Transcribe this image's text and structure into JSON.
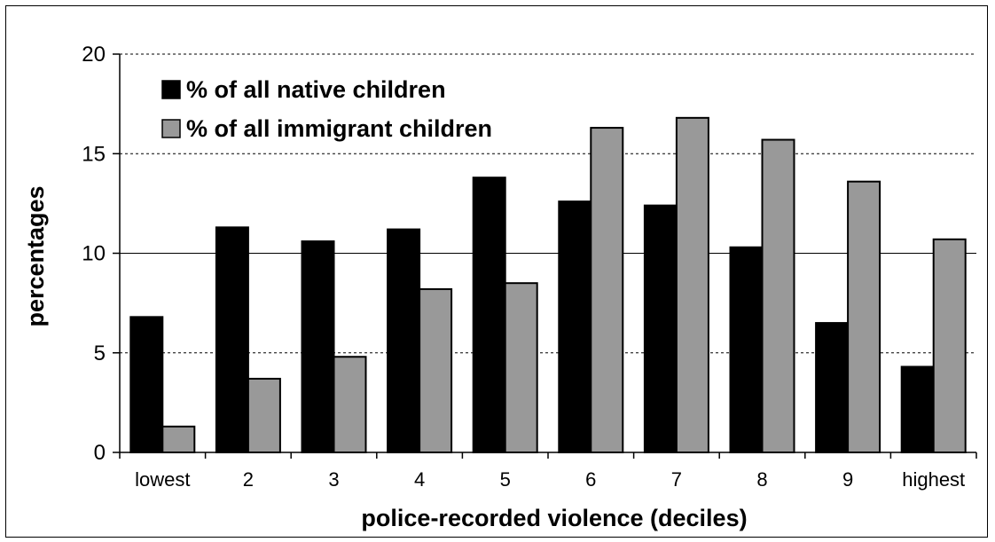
{
  "chart_data": {
    "type": "bar",
    "categories": [
      "lowest",
      "2",
      "3",
      "4",
      "5",
      "6",
      "7",
      "8",
      "9",
      "highest"
    ],
    "series": [
      {
        "name": "% of all native children",
        "color": "#000000",
        "values": [
          6.8,
          11.3,
          10.6,
          11.2,
          13.8,
          12.6,
          12.4,
          10.3,
          6.5,
          4.3
        ]
      },
      {
        "name": "% of all immigrant children",
        "color": "#999999",
        "values": [
          1.3,
          3.7,
          4.8,
          8.2,
          8.5,
          16.3,
          16.8,
          15.7,
          13.6,
          10.7
        ]
      }
    ],
    "xlabel": "police-recorded violence (deciles)",
    "ylabel": "percentages",
    "ylim": [
      0,
      20
    ],
    "yticks": [
      0,
      5,
      10,
      15,
      20
    ],
    "grid": true,
    "legend_position": "top-left"
  }
}
